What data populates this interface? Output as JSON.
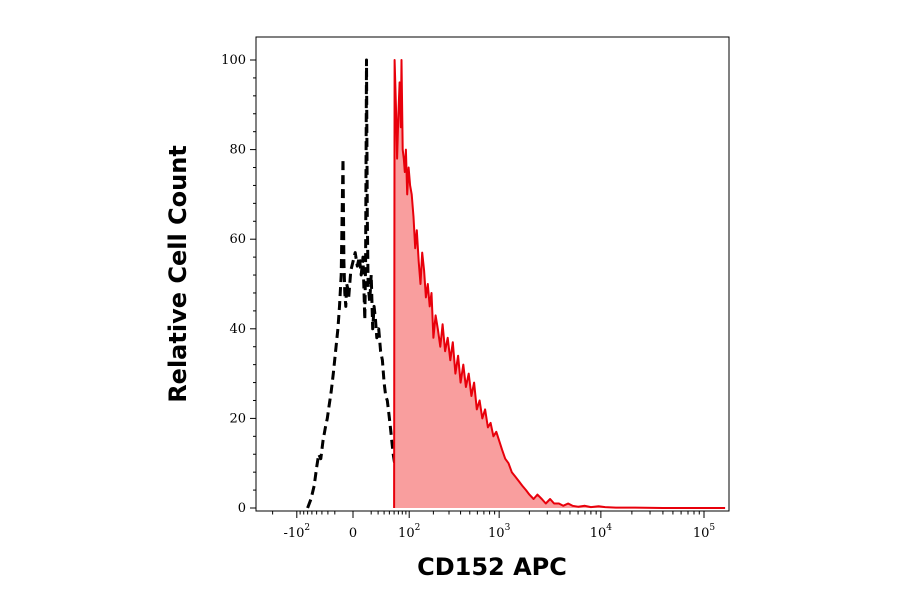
{
  "chart_data": {
    "type": "area",
    "title": "",
    "xlabel": "CD152 APC",
    "ylabel": "Relative Cell Count",
    "x_scale": "biexponential",
    "ylim": [
      0,
      100
    ],
    "y_ticks": [
      0,
      20,
      40,
      60,
      80,
      100
    ],
    "x_ticks": [
      {
        "value": -100,
        "base": "-10",
        "exp": "2"
      },
      {
        "value": 0,
        "base": "0",
        "exp": ""
      },
      {
        "value": 100,
        "base": "10",
        "exp": "2"
      },
      {
        "value": 1000,
        "base": "10",
        "exp": "3"
      },
      {
        "value": 10000,
        "base": "10",
        "exp": "4"
      },
      {
        "value": 100000,
        "base": "10",
        "exp": "5"
      }
    ],
    "grid": false,
    "series": [
      {
        "style": "dashed",
        "color": "#000000",
        "fill": "none",
        "points": [
          [
            -70,
            0
          ],
          [
            -62,
            2
          ],
          [
            -55,
            5
          ],
          [
            -50,
            9
          ],
          [
            -46,
            12
          ],
          [
            -42,
            11
          ],
          [
            -38,
            15
          ],
          [
            -34,
            18
          ],
          [
            -31,
            20
          ],
          [
            -28,
            23
          ],
          [
            -25,
            26
          ],
          [
            -22,
            30
          ],
          [
            -19,
            35
          ],
          [
            -16,
            40
          ],
          [
            -14,
            45
          ],
          [
            -12,
            52
          ],
          [
            -10,
            78
          ],
          [
            -9,
            55
          ],
          [
            -8,
            48
          ],
          [
            -7,
            45
          ],
          [
            -6,
            50
          ],
          [
            -5,
            49
          ],
          [
            -4,
            47
          ],
          [
            -2,
            53
          ],
          [
            0,
            55
          ],
          [
            2,
            57
          ],
          [
            4,
            54
          ],
          [
            6,
            56
          ],
          [
            8,
            52
          ],
          [
            10,
            56
          ],
          [
            12,
            42
          ],
          [
            13,
            55
          ],
          [
            14,
            100
          ],
          [
            15,
            65
          ],
          [
            16,
            50
          ],
          [
            18,
            46
          ],
          [
            20,
            52
          ],
          [
            22,
            40
          ],
          [
            24,
            45
          ],
          [
            26,
            42
          ],
          [
            28,
            38
          ],
          [
            31,
            40
          ],
          [
            34,
            35
          ],
          [
            37,
            33
          ],
          [
            40,
            28
          ],
          [
            43,
            25
          ],
          [
            46,
            24
          ],
          [
            49,
            21
          ],
          [
            52,
            18
          ],
          [
            55,
            15
          ],
          [
            58,
            12
          ],
          [
            61,
            10
          ],
          [
            64,
            8
          ],
          [
            66,
            5
          ],
          [
            68,
            3
          ],
          [
            70,
            2
          ],
          [
            72,
            0
          ]
        ]
      },
      {
        "style": "solid",
        "color": "#e8000b",
        "fill": "#f99e9e",
        "points": [
          [
            60,
            0
          ],
          [
            61,
            100
          ],
          [
            64,
            90
          ],
          [
            67,
            78
          ],
          [
            70,
            88
          ],
          [
            73,
            95
          ],
          [
            76,
            85
          ],
          [
            78,
            100
          ],
          [
            81,
            80
          ],
          [
            84,
            78
          ],
          [
            87,
            75
          ],
          [
            90,
            80
          ],
          [
            94,
            70
          ],
          [
            98,
            76
          ],
          [
            103,
            72
          ],
          [
            108,
            70
          ],
          [
            114,
            65
          ],
          [
            120,
            58
          ],
          [
            126,
            62
          ],
          [
            133,
            55
          ],
          [
            140,
            50
          ],
          [
            147,
            57
          ],
          [
            155,
            53
          ],
          [
            163,
            47
          ],
          [
            172,
            50
          ],
          [
            181,
            45
          ],
          [
            190,
            48
          ],
          [
            200,
            38
          ],
          [
            212,
            43
          ],
          [
            225,
            40
          ],
          [
            240,
            36
          ],
          [
            255,
            41
          ],
          [
            272,
            35
          ],
          [
            290,
            38
          ],
          [
            310,
            33
          ],
          [
            330,
            37
          ],
          [
            352,
            30
          ],
          [
            376,
            34
          ],
          [
            400,
            28
          ],
          [
            428,
            32
          ],
          [
            456,
            27
          ],
          [
            487,
            30
          ],
          [
            520,
            25
          ],
          [
            555,
            28
          ],
          [
            592,
            22
          ],
          [
            632,
            24
          ],
          [
            675,
            20
          ],
          [
            720,
            22
          ],
          [
            770,
            18
          ],
          [
            820,
            19
          ],
          [
            875,
            16
          ],
          [
            935,
            17
          ],
          [
            1000,
            15
          ],
          [
            1070,
            13
          ],
          [
            1150,
            11
          ],
          [
            1240,
            10
          ],
          [
            1340,
            8
          ],
          [
            1450,
            7
          ],
          [
            1570,
            6
          ],
          [
            1700,
            5
          ],
          [
            1850,
            4
          ],
          [
            2000,
            3
          ],
          [
            2200,
            2
          ],
          [
            2400,
            3
          ],
          [
            2650,
            2
          ],
          [
            2900,
            1
          ],
          [
            3200,
            2
          ],
          [
            3500,
            1
          ],
          [
            3900,
            1
          ],
          [
            4300,
            0.5
          ],
          [
            4800,
            1
          ],
          [
            5300,
            0.5
          ],
          [
            6000,
            0.3
          ],
          [
            7000,
            0.5
          ],
          [
            8000,
            0.2
          ],
          [
            9500,
            0.4
          ],
          [
            11000,
            0.2
          ],
          [
            14000,
            0.1
          ],
          [
            20000,
            0.1
          ],
          [
            40000,
            0
          ],
          [
            100000,
            0
          ],
          [
            160000,
            0
          ]
        ]
      }
    ]
  }
}
